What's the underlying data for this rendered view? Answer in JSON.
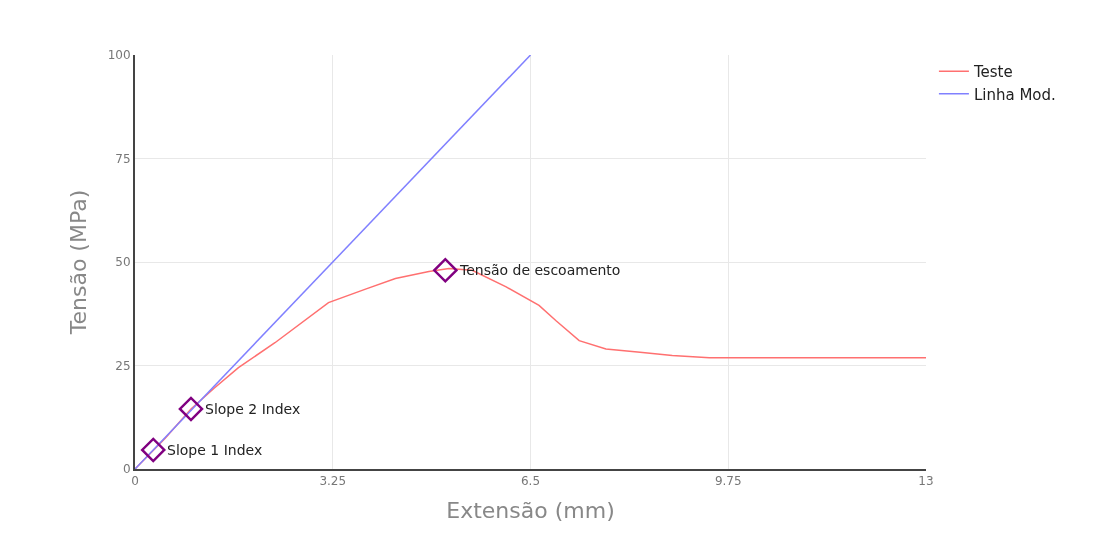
{
  "chart_data": {
    "type": "line",
    "xlabel": "Extensão (mm)",
    "ylabel": "Tensão (MPa)",
    "xlim": [
      0,
      13
    ],
    "xticks": [
      0,
      3.25,
      6.5,
      9.75,
      13
    ],
    "ylim": [
      0,
      100
    ],
    "yticks": [
      0,
      25,
      50,
      75,
      100
    ],
    "grid": true,
    "legend": "top right",
    "line_style": "solid",
    "series": [
      {
        "name": "Teste",
        "color": "#ff7070",
        "x": [
          0,
          0.5,
          0.92,
          1.3,
          1.7,
          2.3,
          3.18,
          3.8,
          4.28,
          4.83,
          5.16,
          5.54,
          6.1,
          6.64,
          6.92,
          7.3,
          7.74,
          8.3,
          8.83,
          9.44,
          10.5,
          13
        ],
        "values": [
          0,
          7.5,
          14.5,
          19.5,
          24.5,
          30.5,
          40.2,
          43.5,
          46,
          47.7,
          48.4,
          48,
          44,
          39.5,
          35.8,
          31,
          29,
          28.2,
          27.4,
          26.9,
          26.9,
          26.9
        ]
      },
      {
        "name": "Linha Mod.",
        "color": "#8080ff",
        "x": [
          0,
          6.5
        ],
        "values": [
          0,
          100
        ]
      },
      {
        "type": "scatter",
        "color": "#800080",
        "marker": "diamond",
        "x": [
          0.3,
          0.92,
          5.1
        ],
        "values": [
          4.6,
          14.5,
          48
        ]
      }
    ],
    "annotations": [
      {
        "text": "Slope 1 Index",
        "x": 0.3,
        "y": 4.6
      },
      {
        "text": "Slope 2 Index",
        "x": 0.92,
        "y": 14.5
      },
      {
        "text": "Tensão de escoamento",
        "x": 5.1,
        "y": 48
      }
    ]
  }
}
